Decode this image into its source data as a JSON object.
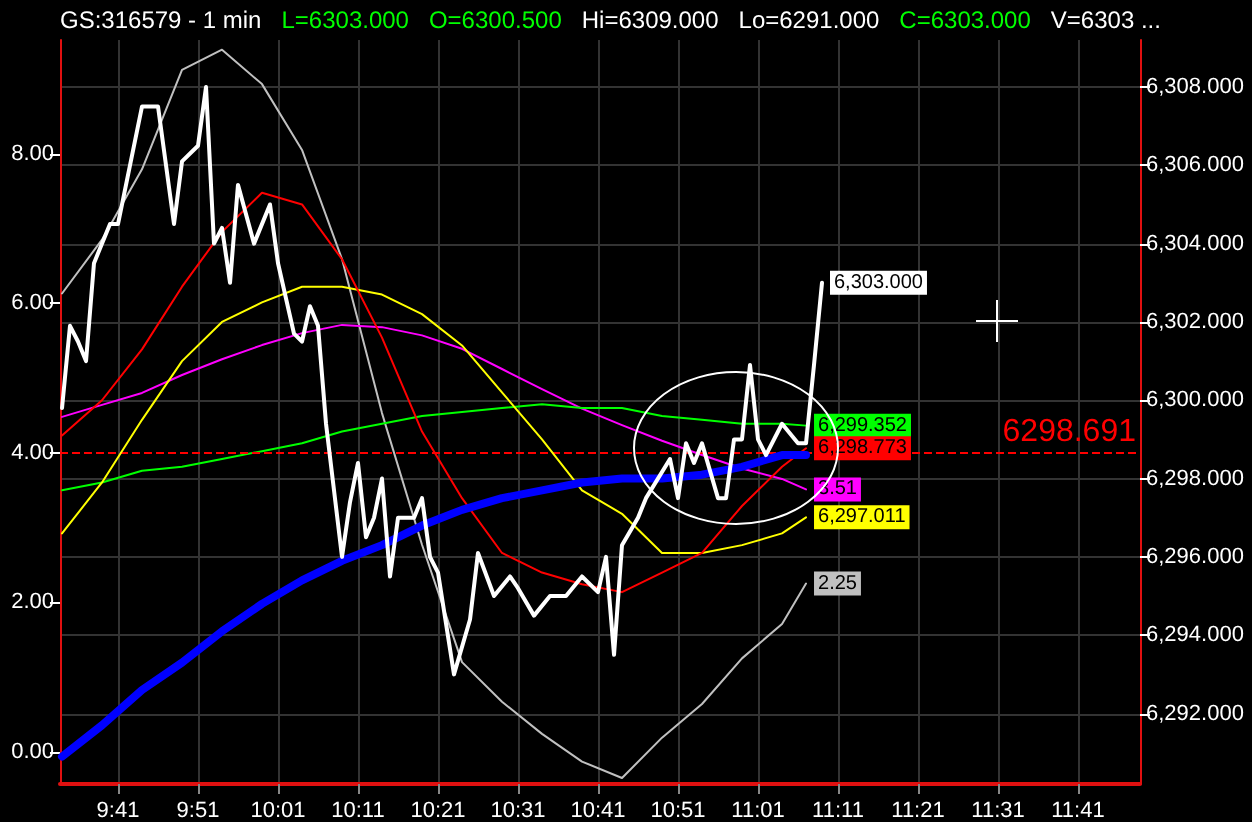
{
  "chart_data": {
    "type": "line",
    "title": "GS:316579 - 1 min",
    "annotations": [
      "L=6303.000",
      "O=6300.500",
      "Hi=6309.000",
      "Lo=6291.000",
      "C=6303.000",
      "V=6303 ..."
    ],
    "xlim": [
      9.5625,
      11.8125
    ],
    "xticks": [
      {
        "value": 9.6833,
        "label": "9:41"
      },
      {
        "value": 9.85,
        "label": "9:51"
      },
      {
        "value": 10.0167,
        "label": "10:01"
      },
      {
        "value": 10.1833,
        "label": "10:11"
      },
      {
        "value": 10.35,
        "label": "10:21"
      },
      {
        "value": 10.5167,
        "label": "10:31"
      },
      {
        "value": 10.6833,
        "label": "10:41"
      },
      {
        "value": 10.85,
        "label": "10:51"
      },
      {
        "value": 11.0167,
        "label": "11:01"
      },
      {
        "value": 11.1833,
        "label": "11:11"
      },
      {
        "value": 11.35,
        "label": "11:21"
      },
      {
        "value": 11.5167,
        "label": "11:31"
      },
      {
        "value": 11.6833,
        "label": "11:41"
      }
    ],
    "ylim": [
      -0.43,
      9.52
    ],
    "yticks": [
      {
        "value": 0,
        "label": "0.00"
      },
      {
        "value": 2,
        "label": "2.00"
      },
      {
        "value": 4,
        "label": "4.00"
      },
      {
        "value": 6,
        "label": "6.00"
      },
      {
        "value": 8,
        "label": "8.00"
      }
    ],
    "y2lim": [
      6290.2,
      6309.2
    ],
    "y2ticks": [
      {
        "value": 6292,
        "label": "6,292.000"
      },
      {
        "value": 6294,
        "label": "6,294.000"
      },
      {
        "value": 6296,
        "label": "6,296.000"
      },
      {
        "value": 6298,
        "label": "6,298.000"
      },
      {
        "value": 6300,
        "label": "6,300.000"
      },
      {
        "value": 6302,
        "label": "6,302.000"
      },
      {
        "value": 6304,
        "label": "6,304.000"
      },
      {
        "value": 6306,
        "label": "6,306.000"
      },
      {
        "value": 6308,
        "label": "6,308.000"
      }
    ],
    "grid": true,
    "marker": "none",
    "line_style": "solid",
    "ref_lines": [
      {
        "axis": "y2",
        "value": 6298.691,
        "label": "6298.691",
        "color": "#ff0000",
        "line_style": "dashed"
      }
    ],
    "series": [
      {
        "color": "#c0c0c0",
        "x": [
          9.5667,
          9.65,
          9.7333,
          9.8167,
          9.9,
          9.9833,
          10.0667,
          10.15,
          10.2333,
          10.3167,
          10.4,
          10.4833,
          10.5667,
          10.65,
          10.7333,
          10.8167,
          10.9,
          10.9833,
          11.0667,
          11.1167
        ],
        "values": [
          6.13,
          6.85,
          7.79,
          9.12,
          9.39,
          8.93,
          8.05,
          6.59,
          4.53,
          2.77,
          1.2,
          0.67,
          0.24,
          -0.13,
          -0.35,
          0.19,
          0.64,
          1.25,
          1.71,
          2.25
        ],
        "value_labels": [
          null,
          null,
          null,
          null,
          null,
          null,
          null,
          null,
          null,
          null,
          null,
          null,
          null,
          null,
          null,
          null,
          null,
          null,
          null,
          "2.25"
        ]
      },
      {
        "color": "#ff00ff",
        "x": [
          9.5667,
          9.65,
          9.7333,
          9.8167,
          9.9,
          9.9833,
          10.0667,
          10.15,
          10.2333,
          10.3167,
          10.4,
          10.4833,
          10.5667,
          10.65,
          10.7333,
          10.8167,
          10.9,
          10.9833,
          11.0667,
          11.1167
        ],
        "values": [
          4.48,
          4.64,
          4.8,
          5.04,
          5.25,
          5.44,
          5.6,
          5.71,
          5.68,
          5.57,
          5.39,
          5.12,
          4.85,
          4.59,
          4.37,
          4.16,
          3.97,
          3.79,
          3.65,
          3.51
        ],
        "value_labels": [
          null,
          null,
          null,
          null,
          null,
          null,
          null,
          null,
          null,
          null,
          null,
          null,
          null,
          null,
          null,
          null,
          null,
          null,
          null,
          "3.51"
        ]
      },
      {
        "color": "#00ff00",
        "axis": "y2",
        "x": [
          9.5667,
          9.65,
          9.7333,
          9.8167,
          9.9,
          9.9833,
          10.0667,
          10.15,
          10.2333,
          10.3167,
          10.4,
          10.4833,
          10.5667,
          10.65,
          10.7333,
          10.8167,
          10.9,
          10.9833,
          11.0667,
          11.1167
        ],
        "values": [
          6297.7,
          6297.9,
          6298.2,
          6298.3,
          6298.5,
          6298.7,
          6298.9,
          6299.2,
          6299.4,
          6299.6,
          6299.7,
          6299.8,
          6299.9,
          6299.8,
          6299.8,
          6299.6,
          6299.5,
          6299.4,
          6299.4,
          6299.352
        ],
        "value_labels": [
          null,
          null,
          null,
          null,
          null,
          null,
          null,
          null,
          null,
          null,
          null,
          null,
          null,
          null,
          null,
          null,
          null,
          null,
          null,
          "6,299.352"
        ]
      },
      {
        "color": "#ffff00",
        "axis": "y2",
        "x": [
          9.5667,
          9.65,
          9.7333,
          9.8167,
          9.9,
          9.9833,
          10.0667,
          10.15,
          10.2333,
          10.3167,
          10.4,
          10.4833,
          10.5667,
          10.65,
          10.7333,
          10.8167,
          10.9,
          10.9833,
          11.0667,
          11.1167
        ],
        "values": [
          6296.6,
          6297.9,
          6299.5,
          6301.0,
          6302.0,
          6302.5,
          6302.9,
          6302.9,
          6302.7,
          6302.2,
          6301.4,
          6300.2,
          6299.0,
          6297.7,
          6297.1,
          6296.1,
          6296.1,
          6296.3,
          6296.6,
          6297.011
        ],
        "value_labels": [
          null,
          null,
          null,
          null,
          null,
          null,
          null,
          null,
          null,
          null,
          null,
          null,
          null,
          null,
          null,
          null,
          null,
          null,
          null,
          "6,297.011"
        ]
      },
      {
        "color": "#ff0000",
        "axis": "y2",
        "x": [
          9.5667,
          9.65,
          9.7333,
          9.8167,
          9.9,
          9.9833,
          10.0667,
          10.15,
          10.2333,
          10.3167,
          10.4,
          10.4833,
          10.5667,
          10.65,
          10.7333,
          10.8167,
          10.9,
          10.9833,
          11.0667,
          11.1167
        ],
        "values": [
          6299.1,
          6300.0,
          6301.3,
          6302.9,
          6304.3,
          6305.3,
          6305.0,
          6303.6,
          6301.6,
          6299.2,
          6297.5,
          6296.1,
          6295.6,
          6295.3,
          6295.1,
          6295.6,
          6296.1,
          6297.3,
          6298.3,
          6298.773
        ],
        "value_labels": [
          null,
          null,
          null,
          null,
          null,
          null,
          null,
          null,
          null,
          null,
          null,
          null,
          null,
          null,
          null,
          null,
          null,
          null,
          null,
          "6,298.773"
        ]
      },
      {
        "color": "#0000ff",
        "axis": "y2",
        "x": [
          9.5667,
          9.65,
          9.7333,
          9.8167,
          9.9,
          9.9833,
          10.0667,
          10.15,
          10.2333,
          10.3167,
          10.4,
          10.4833,
          10.5667,
          10.65,
          10.7333,
          10.8167,
          10.9,
          10.9833,
          11.0667,
          11.1167
        ],
        "values": [
          6290.9,
          6291.7,
          6292.6,
          6293.3,
          6294.1,
          6294.8,
          6295.4,
          6295.9,
          6296.3,
          6296.8,
          6297.2,
          6297.5,
          6297.7,
          6297.9,
          6298.0,
          6298.0,
          6298.1,
          6298.3,
          6298.6,
          6298.6
        ]
      },
      {
        "color": "#ffffff",
        "axis": "y2",
        "x": [
          9.5667,
          9.5833,
          9.6,
          9.6167,
          9.6333,
          9.6667,
          9.6833,
          9.7333,
          9.7667,
          9.8,
          9.8167,
          9.85,
          9.8667,
          9.8833,
          9.9,
          9.9167,
          9.9333,
          9.9667,
          10.0,
          10.0167,
          10.05,
          10.0667,
          10.0833,
          10.1,
          10.1167,
          10.15,
          10.1667,
          10.1833,
          10.2,
          10.2167,
          10.2333,
          10.25,
          10.2667,
          10.3,
          10.3167,
          10.3333,
          10.35,
          10.3833,
          10.4167,
          10.4333,
          10.4667,
          10.5,
          10.5167,
          10.55,
          10.5833,
          10.6167,
          10.65,
          10.6833,
          10.7,
          10.7167,
          10.7333,
          10.7667,
          10.7833,
          10.8333,
          10.85,
          10.8667,
          10.8833,
          10.9,
          10.9333,
          10.95,
          10.9667,
          10.9833,
          11.0,
          11.0167,
          11.0333,
          11.0667,
          11.1,
          11.1167,
          11.1333,
          11.15
        ],
        "values": [
          6299.8,
          6301.9,
          6301.5,
          6301.0,
          6303.5,
          6304.5,
          6304.5,
          6307.5,
          6307.5,
          6304.5,
          6306.1,
          6306.5,
          6308.0,
          6304.0,
          6304.4,
          6303.0,
          6305.5,
          6304.0,
          6305.0,
          6303.5,
          6301.7,
          6301.5,
          6302.4,
          6301.9,
          6299.4,
          6296.0,
          6297.4,
          6298.4,
          6296.5,
          6297.0,
          6298.0,
          6295.5,
          6297.0,
          6297.0,
          6297.5,
          6296.0,
          6295.6,
          6293.0,
          6294.4,
          6296.1,
          6295.0,
          6295.5,
          6295.2,
          6294.5,
          6295.0,
          6295.0,
          6295.5,
          6295.1,
          6296.0,
          6293.5,
          6296.3,
          6297.0,
          6297.5,
          6298.5,
          6297.5,
          6298.9,
          6298.4,
          6298.9,
          6297.5,
          6297.5,
          6299.0,
          6299.0,
          6300.9,
          6299.0,
          6298.6,
          6299.4,
          6298.9,
          6298.9,
          6300.9,
          6303.0
        ],
        "value_labels": [
          null,
          null,
          null,
          null,
          null,
          null,
          null,
          null,
          null,
          null,
          null,
          null,
          null,
          null,
          null,
          null,
          null,
          null,
          null,
          null,
          null,
          null,
          null,
          null,
          null,
          null,
          null,
          null,
          null,
          null,
          null,
          null,
          null,
          null,
          null,
          null,
          null,
          null,
          null,
          null,
          null,
          null,
          null,
          null,
          null,
          null,
          null,
          null,
          null,
          null,
          null,
          null,
          null,
          null,
          null,
          null,
          null,
          null,
          null,
          null,
          null,
          null,
          null,
          null,
          null,
          null,
          null,
          null,
          null,
          "6,303.000"
        ]
      }
    ]
  }
}
